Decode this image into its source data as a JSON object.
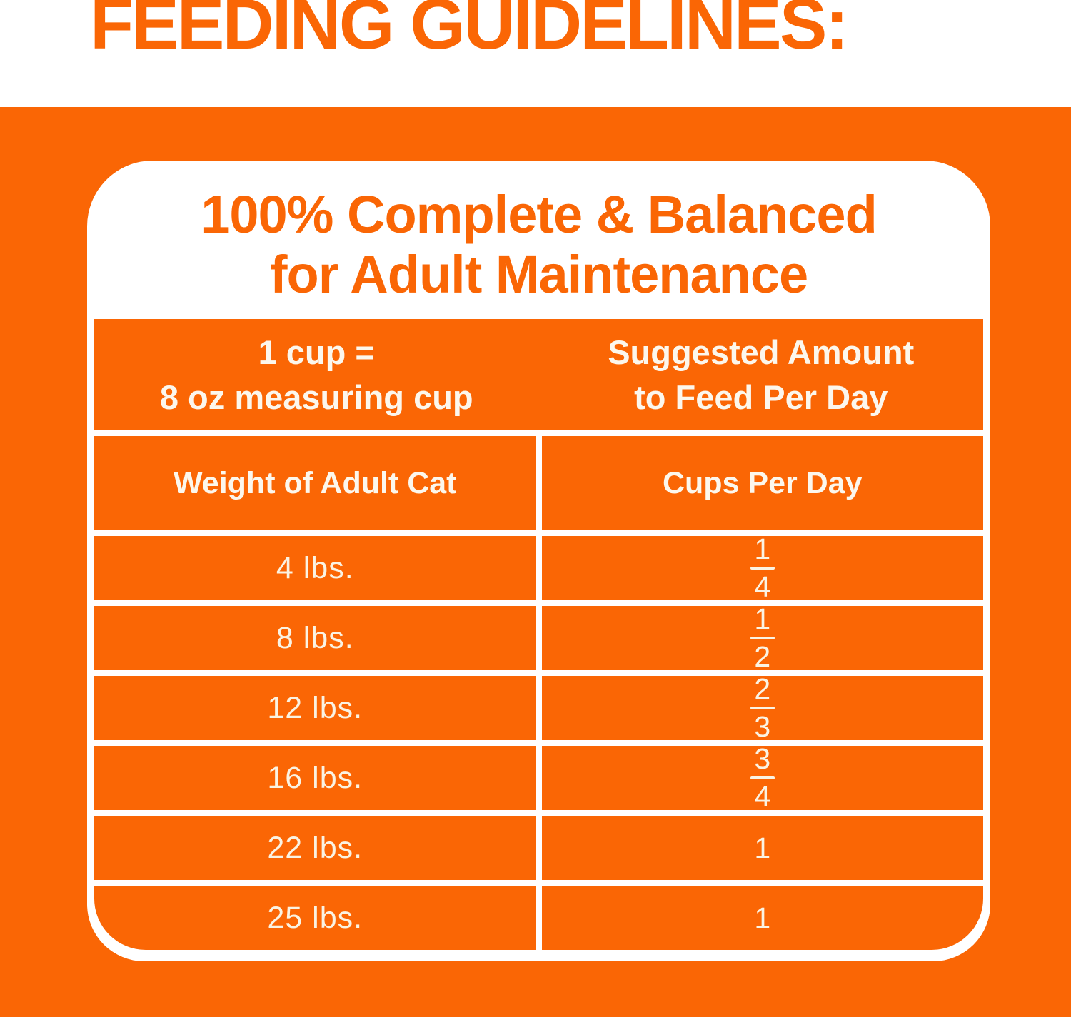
{
  "colors": {
    "orange": "#FA6605",
    "cream_text": "#FAF3E3",
    "card_background": "#FFFFFF"
  },
  "page_heading": "FEEDING GUIDELINES:",
  "card": {
    "title_line1": "100% Complete & Balanced",
    "title_line2": "for Adult Maintenance",
    "table": {
      "header_left_line1": "1 cup =",
      "header_left_line2": "8 oz measuring cup",
      "header_right_line1": "Suggested Amount",
      "header_right_line2": "to Feed Per Day",
      "col1_header": "Weight of Adult Cat",
      "col2_header": "Cups Per Day",
      "rows": [
        {
          "weight": "4 lbs.",
          "cups_num": "1",
          "cups_den": "4"
        },
        {
          "weight": "8 lbs.",
          "cups_num": "1",
          "cups_den": "2"
        },
        {
          "weight": "12 lbs.",
          "cups_num": "2",
          "cups_den": "3"
        },
        {
          "weight": "16 lbs.",
          "cups_num": "3",
          "cups_den": "4"
        },
        {
          "weight": "22 lbs.",
          "cups": "1"
        },
        {
          "weight": "25 lbs.",
          "cups": "1"
        }
      ]
    }
  }
}
